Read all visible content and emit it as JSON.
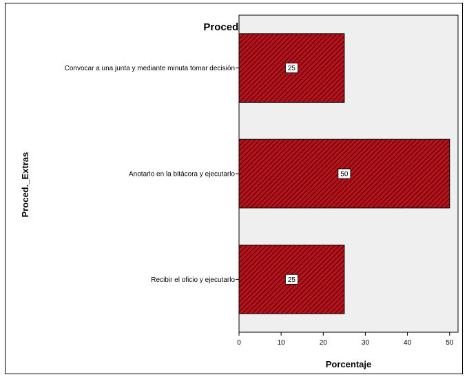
{
  "chart_data": {
    "type": "bar",
    "orientation": "horizontal",
    "title": "Proced._Extras",
    "xlabel": "Porcentaje",
    "ylabel": "Proced._Extras",
    "categories": [
      "Convocar a una junta y mediante minuta tomar decisión",
      "Anotarlo en la bitácora y ejecutarlo",
      "Recibir el oficio y ejecutarlo"
    ],
    "values": [
      25,
      50,
      25
    ],
    "data_labels": [
      "25",
      "50",
      "25"
    ],
    "xlim": [
      0,
      52
    ],
    "x_ticks": [
      0,
      10,
      20,
      30,
      40,
      50
    ],
    "grid": false,
    "colors": {
      "bar_fill": "#b5121b",
      "bar_hatch": "#2a0000",
      "plot_background": "#efefef"
    }
  }
}
